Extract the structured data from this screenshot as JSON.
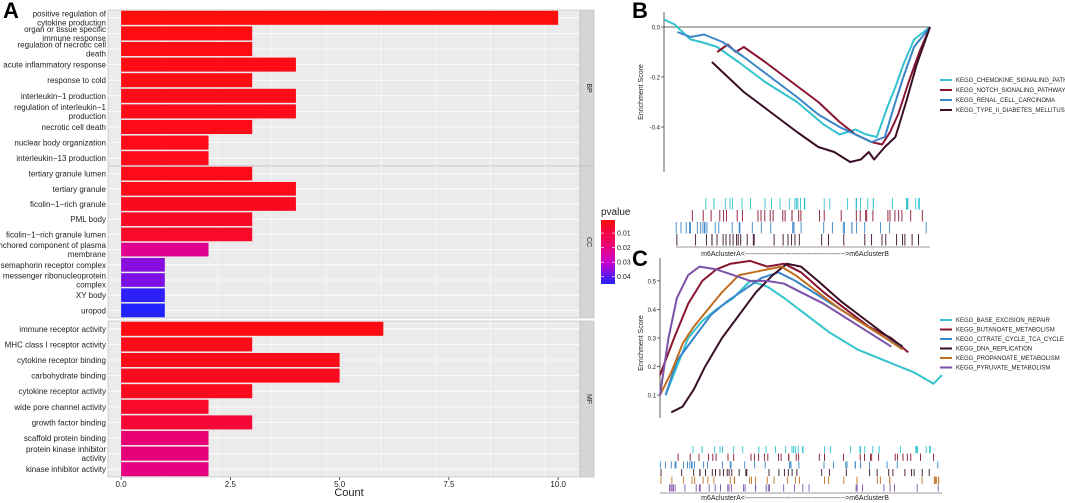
{
  "panel_labels": {
    "a": "A",
    "b": "B",
    "c": "C"
  },
  "chart_data": [
    {
      "type": "bar",
      "orientation": "horizontal",
      "panel": "A",
      "xlabel": "Count",
      "xlim": [
        -0.3,
        10.5
      ],
      "xticks": [
        0.0,
        2.5,
        5.0,
        7.5,
        10.0
      ],
      "xtick_labels": [
        "0.0",
        "2.5",
        "5.0",
        "7.5",
        "10.0"
      ],
      "legend": {
        "title": "pvalue",
        "ticks": [
          "0.01",
          "0.02",
          "0.03",
          "0.04"
        ],
        "range": [
          0.001,
          0.045
        ],
        "placement": "right"
      },
      "facets": [
        {
          "name": "BP",
          "bars": [
            {
              "label": "positive regulation of\ncytokine production",
              "value": 10,
              "p": 0.001
            },
            {
              "label": "organ or tissue specific\nimmune response",
              "value": 3,
              "p": 0.002
            },
            {
              "label": "regulation of necrotic cell\ndeath",
              "value": 3,
              "p": 0.002
            },
            {
              "label": "acute inflammatory response",
              "value": 4,
              "p": 0.002
            },
            {
              "label": "response to cold",
              "value": 3,
              "p": 0.002
            },
            {
              "label": "interleukin−1 production",
              "value": 4,
              "p": 0.003
            },
            {
              "label": "regulation of interleukin−1\nproduction",
              "value": 4,
              "p": 0.003
            },
            {
              "label": "necrotic cell death",
              "value": 3,
              "p": 0.003
            },
            {
              "label": "nuclear body organization",
              "value": 2,
              "p": 0.003
            },
            {
              "label": "interleukin−13 production",
              "value": 2,
              "p": 0.003
            }
          ]
        },
        {
          "name": "CC",
          "bars": [
            {
              "label": "tertiary granule lumen",
              "value": 3,
              "p": 0.003
            },
            {
              "label": "tertiary granule",
              "value": 4,
              "p": 0.003
            },
            {
              "label": "ficolin−1−rich granule",
              "value": 4,
              "p": 0.004
            },
            {
              "label": "PML body",
              "value": 3,
              "p": 0.005
            },
            {
              "label": "ficolin−1−rich granule lumen",
              "value": 3,
              "p": 0.006
            },
            {
              "label": "anchored component of plasma\nmembrane",
              "value": 2,
              "p": 0.022
            },
            {
              "label": "semaphorin receptor complex",
              "value": 1,
              "p": 0.036
            },
            {
              "label": "messenger ribonucleoprotein\ncomplex",
              "value": 1,
              "p": 0.037
            },
            {
              "label": "XY body",
              "value": 1,
              "p": 0.044
            },
            {
              "label": "uropod",
              "value": 1,
              "p": 0.045
            }
          ]
        },
        {
          "name": "MF",
          "bars": [
            {
              "label": "immune receptor activity",
              "value": 6,
              "p": 0.002
            },
            {
              "label": "MHC class I receptor activity",
              "value": 3,
              "p": 0.003
            },
            {
              "label": "cytokine receptor binding",
              "value": 5,
              "p": 0.003
            },
            {
              "label": "carbohydrate binding",
              "value": 5,
              "p": 0.004
            },
            {
              "label": "cytokine receptor activity",
              "value": 3,
              "p": 0.004
            },
            {
              "label": "wide pore channel activity",
              "value": 2,
              "p": 0.006
            },
            {
              "label": "growth factor binding",
              "value": 3,
              "p": 0.008
            },
            {
              "label": "scaffold protein binding",
              "value": 2,
              "p": 0.018
            },
            {
              "label": "protein kinase inhibitor\nactivity",
              "value": 2,
              "p": 0.019
            },
            {
              "label": "kinase inhibitor activity",
              "value": 2,
              "p": 0.02
            }
          ]
        }
      ]
    },
    {
      "type": "line",
      "panel": "B",
      "ylabel": "Enrichment Score",
      "xlabel": "m6AclusterA<------------------------------------------->m6AclusterB",
      "ylim": [
        -0.58,
        0.06
      ],
      "yticks": [
        0.0,
        -0.2,
        -0.4
      ],
      "ytick_labels": [
        "0.0",
        "-0.2",
        "-0.4"
      ],
      "legend_placement": "right",
      "series": [
        {
          "name": "KEGG_CHEMOKINE_SIGNALING_PATHWAY",
          "color": "#33c3d0",
          "x": [
            0,
            0.04,
            0.08,
            0.1,
            0.14,
            0.2,
            0.28,
            0.38,
            0.5,
            0.6,
            0.66,
            0.72,
            0.76,
            0.8,
            0.84,
            0.87,
            0.9,
            0.94,
            1.0
          ],
          "y": [
            0.03,
            0.01,
            -0.03,
            -0.05,
            -0.06,
            -0.08,
            -0.14,
            -0.22,
            -0.3,
            -0.39,
            -0.43,
            -0.41,
            -0.43,
            -0.44,
            -0.32,
            -0.24,
            -0.15,
            -0.05,
            0.0
          ]
        },
        {
          "name": "KEGG_NOTCH_SIGNALING_PATHWAY",
          "color": "#8a1530",
          "x": [
            0.2,
            0.24,
            0.27,
            0.3,
            0.38,
            0.48,
            0.58,
            0.66,
            0.72,
            0.78,
            0.82,
            0.85,
            0.88,
            0.92,
            0.96,
            1.0
          ],
          "y": [
            -0.1,
            -0.07,
            -0.1,
            -0.08,
            -0.14,
            -0.22,
            -0.3,
            -0.38,
            -0.43,
            -0.46,
            -0.47,
            -0.42,
            -0.35,
            -0.22,
            -0.1,
            -0.0
          ]
        },
        {
          "name": "KEGG_RENAL_CELL_CARCINOMA",
          "color": "#3a86c8",
          "x": [
            0.05,
            0.1,
            0.15,
            0.22,
            0.3,
            0.4,
            0.5,
            0.58,
            0.66,
            0.72,
            0.78,
            0.83,
            0.87,
            0.9,
            0.94,
            1.0
          ],
          "y": [
            -0.02,
            -0.04,
            -0.03,
            -0.06,
            -0.12,
            -0.2,
            -0.28,
            -0.35,
            -0.4,
            -0.43,
            -0.46,
            -0.44,
            -0.3,
            -0.2,
            -0.08,
            0.0
          ]
        },
        {
          "name": "KEGG_TYPE_II_DIABETES_MELLITUS",
          "color": "#3a1028",
          "x": [
            0.18,
            0.22,
            0.3,
            0.4,
            0.5,
            0.58,
            0.64,
            0.7,
            0.74,
            0.77,
            0.79,
            0.83,
            0.87,
            0.91,
            0.95,
            1.0
          ],
          "y": [
            -0.14,
            -0.18,
            -0.26,
            -0.34,
            -0.42,
            -0.48,
            -0.5,
            -0.54,
            -0.53,
            -0.5,
            -0.53,
            -0.48,
            -0.44,
            -0.3,
            -0.15,
            0.0
          ]
        }
      ]
    },
    {
      "type": "line",
      "panel": "C",
      "ylabel": "Enrichment Score",
      "xlabel": "m6AclusterA<------------------------------------------->m6AclusterB",
      "ylim": [
        0.02,
        0.58
      ],
      "yticks": [
        0.1,
        0.2,
        0.3,
        0.4,
        0.5
      ],
      "ytick_labels": [
        "0.1",
        "0.2",
        "0.3",
        "0.4",
        "0.5"
      ],
      "legend_placement": "right",
      "series": [
        {
          "name": "KEGG_BASE_EXCISION_REPAIR",
          "color": "#33c3d0",
          "x": [
            0.02,
            0.06,
            0.1,
            0.15,
            0.2,
            0.26,
            0.32,
            0.38,
            0.44,
            0.52,
            0.6,
            0.7,
            0.8,
            0.9,
            0.97,
            1.0
          ],
          "y": [
            0.1,
            0.2,
            0.3,
            0.36,
            0.4,
            0.44,
            0.5,
            0.48,
            0.44,
            0.38,
            0.32,
            0.26,
            0.22,
            0.18,
            0.14,
            0.17
          ]
        },
        {
          "name": "KEGG_BUTANOATE_METABOLISM",
          "color": "#8a1530",
          "x": [
            0.0,
            0.05,
            0.1,
            0.15,
            0.2,
            0.25,
            0.32,
            0.38,
            0.44,
            0.5,
            0.58,
            0.66,
            0.74,
            0.82,
            0.88
          ],
          "y": [
            0.17,
            0.3,
            0.42,
            0.5,
            0.54,
            0.56,
            0.57,
            0.55,
            0.56,
            0.53,
            0.46,
            0.4,
            0.34,
            0.3,
            0.25
          ]
        },
        {
          "name": "KEGG_CITRATE_CYCLE_TCA_CYCLE",
          "color": "#3a86c8",
          "x": [
            0.02,
            0.06,
            0.12,
            0.18,
            0.24,
            0.3,
            0.36,
            0.42,
            0.48,
            0.56,
            0.64,
            0.72,
            0.8,
            0.86
          ],
          "y": [
            0.1,
            0.22,
            0.3,
            0.38,
            0.43,
            0.47,
            0.51,
            0.53,
            0.5,
            0.45,
            0.4,
            0.35,
            0.3,
            0.27
          ]
        },
        {
          "name": "KEGG_DNA_REPLICATION",
          "color": "#3a1028",
          "x": [
            0.04,
            0.08,
            0.12,
            0.16,
            0.22,
            0.28,
            0.34,
            0.4,
            0.45,
            0.5,
            0.56,
            0.64,
            0.72,
            0.8,
            0.86
          ],
          "y": [
            0.04,
            0.06,
            0.12,
            0.2,
            0.3,
            0.38,
            0.46,
            0.52,
            0.56,
            0.55,
            0.5,
            0.43,
            0.37,
            0.31,
            0.27
          ]
        },
        {
          "name": "KEGG_PROPANOATE_METABOLISM",
          "color": "#c06f20",
          "x": [
            0.0,
            0.04,
            0.08,
            0.12,
            0.17,
            0.22,
            0.28,
            0.33,
            0.38,
            0.43,
            0.48,
            0.56,
            0.64,
            0.72,
            0.8,
            0.86
          ],
          "y": [
            0.1,
            0.18,
            0.28,
            0.34,
            0.4,
            0.46,
            0.52,
            0.53,
            0.54,
            0.55,
            0.52,
            0.46,
            0.4,
            0.35,
            0.3,
            0.26
          ]
        },
        {
          "name": "KEGG_PYRUVATE_METABOLISM",
          "color": "#7b52a8",
          "x": [
            0.0,
            0.03,
            0.06,
            0.1,
            0.14,
            0.2,
            0.26,
            0.32,
            0.38,
            0.44,
            0.5,
            0.58,
            0.66,
            0.74,
            0.82
          ],
          "y": [
            0.1,
            0.3,
            0.44,
            0.52,
            0.55,
            0.54,
            0.52,
            0.5,
            0.5,
            0.49,
            0.46,
            0.42,
            0.37,
            0.32,
            0.27
          ]
        }
      ]
    }
  ]
}
